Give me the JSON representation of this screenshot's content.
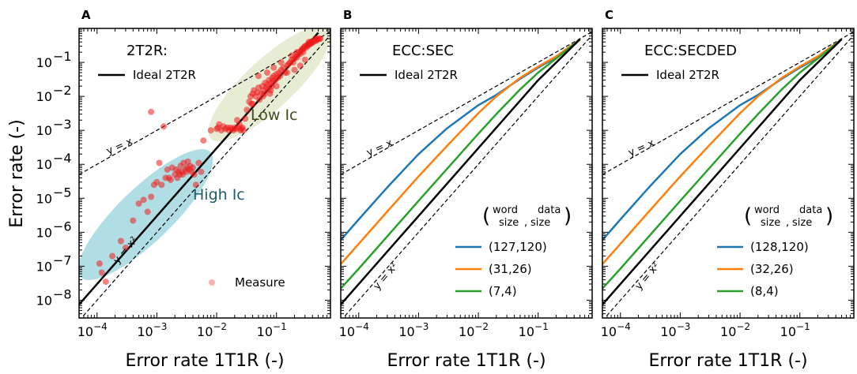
{
  "chart_data": [
    {
      "panel": "A",
      "type": "scatter",
      "title": "2T2R:",
      "xlabel": "Error rate 1T1R (-)",
      "ylabel": "Error rate (-)",
      "xscale": "log",
      "yscale": "log",
      "xlim": [
        5e-05,
        0.8
      ],
      "ylim": [
        3e-09,
        1
      ],
      "xticks": [
        {
          "v": 0.0001,
          "mant": "10",
          "exp": "−4"
        },
        {
          "v": 0.001,
          "mant": "10",
          "exp": "−3"
        },
        {
          "v": 0.01,
          "mant": "10",
          "exp": "−2"
        },
        {
          "v": 0.1,
          "mant": "10",
          "exp": "−1"
        }
      ],
      "yticks": [
        {
          "v": 1e-08,
          "mant": "10",
          "exp": "−8"
        },
        {
          "v": 1e-07,
          "mant": "10",
          "exp": "−7"
        },
        {
          "v": 1e-06,
          "mant": "10",
          "exp": "−6"
        },
        {
          "v": 1e-05,
          "mant": "10",
          "exp": "−5"
        },
        {
          "v": 0.0001,
          "mant": "10",
          "exp": "−4"
        },
        {
          "v": 0.001,
          "mant": "10",
          "exp": "−3"
        },
        {
          "v": 0.01,
          "mant": "10",
          "exp": "−2"
        },
        {
          "v": 0.1,
          "mant": "10",
          "exp": "−1"
        }
      ],
      "legend": {
        "ideal": "Ideal 2T2R",
        "measure": "Measure"
      },
      "reference_labels": {
        "linear": "y = x",
        "quadratic": "y = x²"
      },
      "regions": [
        {
          "label": "Low Ic",
          "color": "#3d4f1e"
        },
        {
          "label": "High Ic",
          "color": "#1f5e6b"
        }
      ],
      "series": [
        {
          "name": "Ideal 2T2R",
          "kind": "line",
          "color": "#000000",
          "x": [
            5e-05,
            0.0001,
            0.001,
            0.01,
            0.1,
            0.5
          ]
        },
        {
          "name": "Measure",
          "kind": "scatter",
          "color": "#ee1c1c",
          "points": [
            [
              0.00011,
              1.2e-07
            ],
            [
              0.00012,
              6.5e-08
            ],
            [
              0.00014,
              3.5e-08
            ],
            [
              0.00018,
              2e-07
            ],
            [
              0.00025,
              5.5e-07
            ],
            [
              0.0003,
              3.5e-07
            ],
            [
              0.0004,
              2.2e-06
            ],
            [
              0.0005,
              7e-06
            ],
            [
              0.0006,
              9e-06
            ],
            [
              0.0007,
              4e-06
            ],
            [
              0.0008,
              1.1e-05
            ],
            [
              0.0009,
              2.5e-05
            ],
            [
              0.0008,
              0.0035
            ],
            [
              0.001,
              3e-05
            ],
            [
              0.0011,
              0.00011
            ],
            [
              0.0012,
              2.5e-05
            ],
            [
              0.0013,
              0.0013
            ],
            [
              0.0014,
              4e-05
            ],
            [
              0.0015,
              7e-05
            ],
            [
              0.0016,
              4e-05
            ],
            [
              0.0017,
              3.5e-05
            ],
            [
              0.0018,
              8e-05
            ],
            [
              0.002,
              5e-05
            ],
            [
              0.0021,
              7e-05
            ],
            [
              0.0022,
              4e-05
            ],
            [
              0.0023,
              6e-05
            ],
            [
              0.0024,
              5e-05
            ],
            [
              0.0025,
              9e-05
            ],
            [
              0.0026,
              6e-05
            ],
            [
              0.0027,
              5e-05
            ],
            [
              0.0028,
              0.00011
            ],
            [
              0.003,
              7e-05
            ],
            [
              0.0031,
              6e-05
            ],
            [
              0.0032,
              8e-05
            ],
            [
              0.0033,
              0.00012
            ],
            [
              0.0035,
              7e-05
            ],
            [
              0.0036,
              9e-05
            ],
            [
              0.0038,
              6e-05
            ],
            [
              0.004,
              8e-05
            ],
            [
              0.0042,
              5e-05
            ],
            [
              0.0045,
              2.5e-05
            ],
            [
              0.005,
              0.00011
            ],
            [
              0.0055,
              6e-05
            ],
            [
              0.006,
              0.0005
            ],
            [
              0.008,
              0.001
            ],
            [
              0.01,
              0.0011
            ],
            [
              0.0105,
              0.0012
            ],
            [
              0.011,
              0.0015
            ],
            [
              0.012,
              0.001
            ],
            [
              0.013,
              0.0013
            ],
            [
              0.014,
              0.0011
            ],
            [
              0.015,
              0.0012
            ],
            [
              0.016,
              0.001
            ],
            [
              0.017,
              0.0012
            ],
            [
              0.018,
              0.0011
            ],
            [
              0.019,
              0.001
            ],
            [
              0.02,
              0.0012
            ],
            [
              0.021,
              0.0011
            ],
            [
              0.022,
              0.002
            ],
            [
              0.023,
              0.0012
            ],
            [
              0.024,
              0.0015
            ],
            [
              0.025,
              0.001
            ],
            [
              0.026,
              0.0011
            ],
            [
              0.027,
              0.0012
            ],
            [
              0.028,
              0.001
            ],
            [
              0.03,
              0.0022
            ],
            [
              0.032,
              0.004
            ],
            [
              0.035,
              0.007
            ],
            [
              0.037,
              0.01
            ],
            [
              0.038,
              0.006
            ],
            [
              0.04,
              0.012
            ],
            [
              0.042,
              0.015
            ],
            [
              0.045,
              0.01
            ],
            [
              0.048,
              0.013
            ],
            [
              0.05,
              0.018
            ],
            [
              0.052,
              0.008
            ],
            [
              0.055,
              0.012
            ],
            [
              0.058,
              0.02
            ],
            [
              0.06,
              0.015
            ],
            [
              0.063,
              0.012
            ],
            [
              0.065,
              0.025
            ],
            [
              0.068,
              0.018
            ],
            [
              0.07,
              0.022
            ],
            [
              0.073,
              0.016
            ],
            [
              0.075,
              0.03
            ],
            [
              0.078,
              0.012
            ],
            [
              0.08,
              0.025
            ],
            [
              0.083,
              0.02
            ],
            [
              0.085,
              0.035
            ],
            [
              0.088,
              0.028
            ],
            [
              0.09,
              0.04
            ],
            [
              0.095,
              0.03
            ],
            [
              0.1,
              0.045
            ],
            [
              0.105,
              0.035
            ],
            [
              0.11,
              0.05
            ],
            [
              0.115,
              0.04
            ],
            [
              0.12,
              0.06
            ],
            [
              0.13,
              0.07
            ],
            [
              0.14,
              0.05
            ],
            [
              0.15,
              0.08
            ],
            [
              0.16,
              0.09
            ],
            [
              0.17,
              0.1
            ],
            [
              0.18,
              0.12
            ],
            [
              0.19,
              0.1
            ],
            [
              0.2,
              0.13
            ],
            [
              0.21,
              0.15
            ],
            [
              0.22,
              0.14
            ],
            [
              0.23,
              0.17
            ],
            [
              0.24,
              0.2
            ],
            [
              0.25,
              0.18
            ],
            [
              0.26,
              0.22
            ],
            [
              0.27,
              0.25
            ],
            [
              0.28,
              0.2
            ],
            [
              0.29,
              0.28
            ],
            [
              0.3,
              0.3
            ],
            [
              0.31,
              0.27
            ],
            [
              0.32,
              0.32
            ],
            [
              0.33,
              0.3
            ],
            [
              0.34,
              0.35
            ],
            [
              0.35,
              0.33
            ],
            [
              0.36,
              0.38
            ],
            [
              0.37,
              0.35
            ],
            [
              0.38,
              0.4
            ],
            [
              0.39,
              0.37
            ],
            [
              0.4,
              0.42
            ],
            [
              0.42,
              0.4
            ],
            [
              0.44,
              0.45
            ],
            [
              0.46,
              0.43
            ],
            [
              0.48,
              0.47
            ],
            [
              0.5,
              0.48
            ],
            [
              0.52,
              0.5
            ],
            [
              0.54,
              0.5
            ],
            [
              0.3,
              0.12
            ],
            [
              0.25,
              0.08
            ],
            [
              0.2,
              0.06
            ],
            [
              0.15,
              0.05
            ],
            [
              0.1,
              0.02
            ],
            [
              0.08,
              0.015
            ],
            [
              0.06,
              0.01
            ],
            [
              0.04,
              0.006
            ],
            [
              0.12,
              0.1
            ],
            [
              0.18,
              0.16
            ],
            [
              0.22,
              0.2
            ],
            [
              0.28,
              0.25
            ],
            [
              0.35,
              0.4
            ],
            [
              0.45,
              0.5
            ],
            [
              0.05,
              0.04
            ],
            [
              0.07,
              0.05
            ],
            [
              0.09,
              0.07
            ]
          ]
        }
      ]
    },
    {
      "panel": "B",
      "type": "line",
      "title": "ECC:SEC",
      "xlabel": "Error rate 1T1R (-)",
      "xscale": "log",
      "yscale": "log",
      "xlim": [
        5e-05,
        0.8
      ],
      "ylim": [
        3e-09,
        1
      ],
      "xticks": [
        {
          "v": 0.0001,
          "mant": "10",
          "exp": "−4"
        },
        {
          "v": 0.001,
          "mant": "10",
          "exp": "−3"
        },
        {
          "v": 0.01,
          "mant": "10",
          "exp": "−2"
        },
        {
          "v": 0.1,
          "mant": "10",
          "exp": "−1"
        }
      ],
      "legend_title": {
        "word": "word",
        "data": "data",
        "size1": "size",
        "size2": "size"
      },
      "reference_labels": {
        "linear": "y = x",
        "quadratic": "y = x²"
      },
      "ideal_label": "Ideal 2T2R",
      "series": [
        {
          "name": "(127,120)",
          "color": "#1f77b4",
          "x": [
            5e-05,
            0.0001,
            0.0003,
            0.001,
            0.003,
            0.01,
            0.02,
            0.05,
            0.1,
            0.2,
            0.5
          ],
          "y": [
            5.9e-07,
            2.4e-06,
            2.1e-05,
            0.0002,
            0.00115,
            0.0055,
            0.011,
            0.033,
            0.07,
            0.14,
            0.48
          ]
        },
        {
          "name": "(31,26)",
          "color": "#ff7f0e",
          "x": [
            5e-05,
            0.0001,
            0.0003,
            0.001,
            0.003,
            0.01,
            0.02,
            0.05,
            0.1,
            0.2,
            0.5
          ],
          "y": [
            1.15e-07,
            4.6e-07,
            4.1e-06,
            4.4e-05,
            0.00035,
            0.0032,
            0.01,
            0.035,
            0.075,
            0.15,
            0.48
          ]
        },
        {
          "name": "(7,4)",
          "color": "#2ca02c",
          "x": [
            5e-05,
            0.0001,
            0.0003,
            0.001,
            0.003,
            0.01,
            0.02,
            0.05,
            0.1,
            0.2,
            0.5
          ],
          "y": [
            2.2e-08,
            8.5e-08,
            7.6e-07,
            8.4e-06,
            7.4e-05,
            0.0008,
            0.003,
            0.016,
            0.05,
            0.13,
            0.48
          ]
        },
        {
          "name": "Ideal 2T2R",
          "color": "#000000",
          "x": [
            5e-05,
            0.0001,
            0.001,
            0.01,
            0.1,
            0.5
          ],
          "y": [
            7.5e-09,
            3e-08,
            3e-06,
            0.0003,
            0.03,
            0.48
          ]
        }
      ]
    },
    {
      "panel": "C",
      "type": "line",
      "title": "ECC:SECDED",
      "xlabel": "Error rate 1T1R (-)",
      "xscale": "log",
      "yscale": "log",
      "xlim": [
        5e-05,
        0.8
      ],
      "ylim": [
        3e-09,
        1
      ],
      "xticks": [
        {
          "v": 0.0001,
          "mant": "10",
          "exp": "−4"
        },
        {
          "v": 0.001,
          "mant": "10",
          "exp": "−3"
        },
        {
          "v": 0.01,
          "mant": "10",
          "exp": "−2"
        },
        {
          "v": 0.1,
          "mant": "10",
          "exp": "−1"
        }
      ],
      "legend_title": {
        "word": "word",
        "data": "data",
        "size1": "size",
        "size2": "size"
      },
      "reference_labels": {
        "linear": "y = x",
        "quadratic": "y = x²"
      },
      "ideal_label": "Ideal 2T2R",
      "series": [
        {
          "name": "(128,120)",
          "color": "#1f77b4",
          "x": [
            5e-05,
            0.0001,
            0.0003,
            0.001,
            0.003,
            0.01,
            0.02,
            0.05,
            0.1,
            0.2,
            0.5
          ],
          "y": [
            5.9e-07,
            2.4e-06,
            2.1e-05,
            0.0002,
            0.00115,
            0.0055,
            0.011,
            0.033,
            0.07,
            0.14,
            0.48
          ]
        },
        {
          "name": "(32,26)",
          "color": "#ff7f0e",
          "x": [
            5e-05,
            0.0001,
            0.0003,
            0.001,
            0.003,
            0.01,
            0.02,
            0.05,
            0.1,
            0.2,
            0.5
          ],
          "y": [
            1.15e-07,
            4.6e-07,
            4.1e-06,
            4.4e-05,
            0.00035,
            0.0032,
            0.01,
            0.035,
            0.075,
            0.15,
            0.48
          ]
        },
        {
          "name": "(8,4)",
          "color": "#2ca02c",
          "x": [
            5e-05,
            0.0001,
            0.0003,
            0.001,
            0.003,
            0.01,
            0.02,
            0.05,
            0.1,
            0.2,
            0.5
          ],
          "y": [
            2.2e-08,
            8.5e-08,
            7.6e-07,
            8.4e-06,
            7.4e-05,
            0.0008,
            0.003,
            0.016,
            0.05,
            0.13,
            0.48
          ]
        },
        {
          "name": "Ideal 2T2R",
          "color": "#000000",
          "x": [
            5e-05,
            0.0001,
            0.001,
            0.01,
            0.1,
            0.5
          ],
          "y": [
            7.5e-09,
            3e-08,
            3e-06,
            0.0003,
            0.03,
            0.48
          ]
        }
      ]
    }
  ]
}
